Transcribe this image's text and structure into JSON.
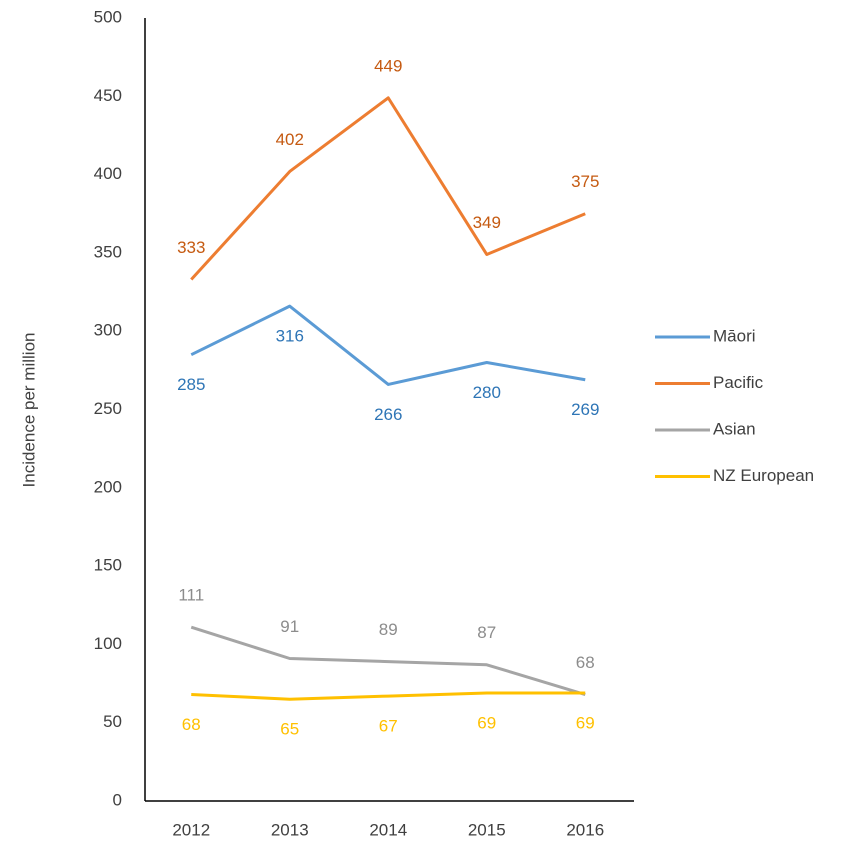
{
  "chart_data": {
    "type": "line",
    "y_label": "Incidence per million",
    "categories": [
      "2012",
      "2013",
      "2014",
      "2015",
      "2016"
    ],
    "series": [
      {
        "name": "Māori",
        "color": "#5b9bd5",
        "label_color": "#2e75b6",
        "label_side": "below",
        "values": [
          285,
          316,
          266,
          280,
          269
        ]
      },
      {
        "name": "Pacific",
        "color": "#ed7d31",
        "label_color": "#c55a11",
        "label_side": "above",
        "values": [
          333,
          402,
          449,
          349,
          375
        ]
      },
      {
        "name": "Asian",
        "color": "#a5a5a5",
        "label_color": "#8c8c8c",
        "label_side": "above",
        "values": [
          111,
          91,
          89,
          87,
          68
        ]
      },
      {
        "name": "NZ European",
        "color": "#ffc000",
        "label_color": "#ffc000",
        "label_side": "below",
        "values": [
          68,
          65,
          67,
          69,
          69
        ]
      }
    ],
    "ylim": [
      0,
      500
    ],
    "yticks": [
      0,
      50,
      100,
      150,
      200,
      250,
      300,
      350,
      400,
      450,
      500
    ],
    "grid": false,
    "legend": "right"
  }
}
